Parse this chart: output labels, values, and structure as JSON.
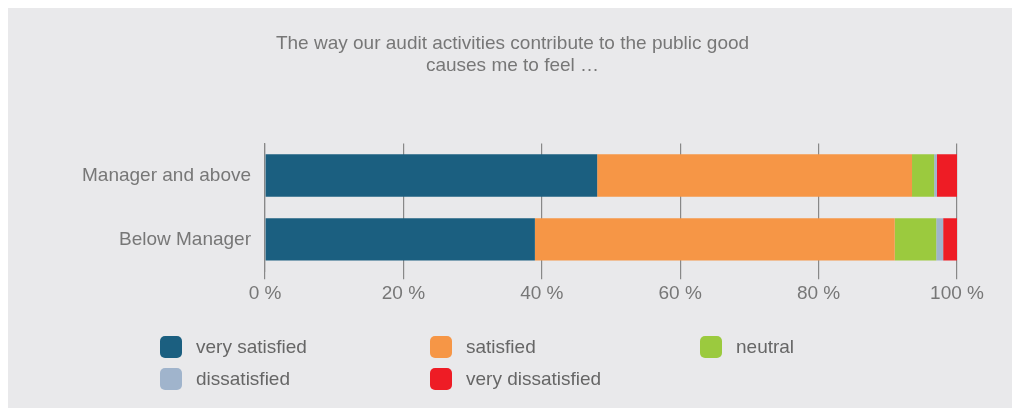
{
  "chart_data": {
    "type": "bar",
    "orientation": "horizontal",
    "stacked": true,
    "title": [
      "The way our audit activities contribute to the public good",
      "causes me to feel …"
    ],
    "categories": [
      "Manager and above",
      "Below Manager"
    ],
    "series": [
      {
        "name": "very satisfied",
        "color": "#1b5f80",
        "values": [
          48,
          39
        ]
      },
      {
        "name": "satisfied",
        "color": "#f69646",
        "values": [
          45.5,
          52
        ]
      },
      {
        "name": "neutral",
        "color": "#9bca3e",
        "values": [
          3.2,
          6
        ]
      },
      {
        "name": "dissatisfied",
        "color": "#a0b4cc",
        "values": [
          0.4,
          1
        ]
      },
      {
        "name": "very dissatisfied",
        "color": "#ee1c25",
        "values": [
          2.9,
          2
        ]
      }
    ],
    "xlim": [
      0,
      100
    ],
    "xticks": [
      {
        "value": 0,
        "label": "0 %"
      },
      {
        "value": 20,
        "label": "20 %"
      },
      {
        "value": 40,
        "label": "40 %"
      },
      {
        "value": 60,
        "label": "60 %"
      },
      {
        "value": 80,
        "label": "80 %"
      },
      {
        "value": 100,
        "label": "100 %"
      }
    ],
    "grid": "x",
    "legend": "bottom"
  }
}
